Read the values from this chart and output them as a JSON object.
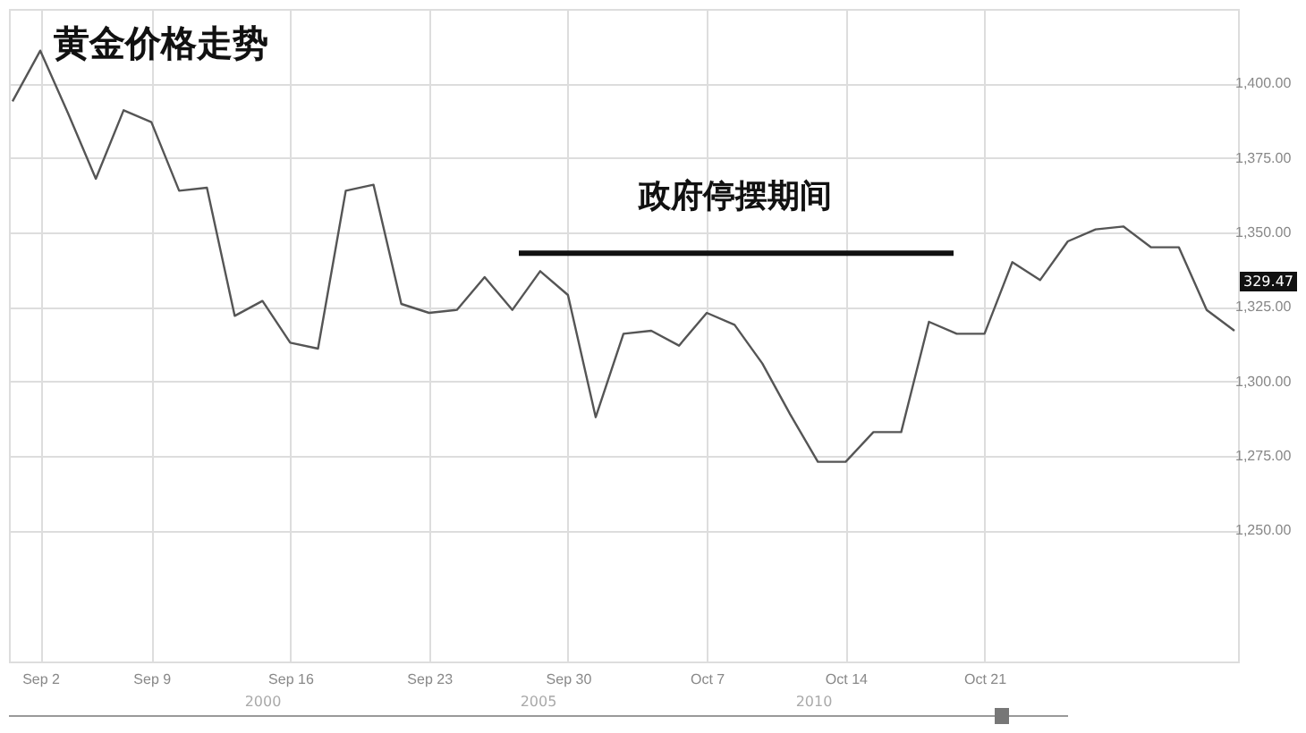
{
  "chart_data": {
    "type": "line",
    "title": "黄金价格走势",
    "categories": [
      null,
      "Sep 2",
      null,
      null,
      null,
      "Sep 9",
      null,
      null,
      null,
      null,
      "Sep 16",
      null,
      null,
      null,
      null,
      "Sep 23",
      null,
      null,
      null,
      null,
      "Sep 30",
      null,
      null,
      null,
      null,
      "Oct 7",
      null,
      null,
      null,
      null,
      "Oct 14",
      null,
      null,
      null,
      null,
      "Oct 21",
      null,
      null,
      null,
      null,
      null,
      null,
      null,
      null,
      null
    ],
    "series": [
      {
        "color": "#555555",
        "values": [
          1394,
          1411,
          1390,
          1368,
          1391,
          1387,
          1364,
          1365,
          1322,
          1327,
          1313,
          1311,
          1364,
          1366,
          1326,
          1323,
          1324,
          1335,
          1324,
          1337,
          1329,
          1288,
          1316,
          1317,
          1312,
          1323,
          1319,
          1306,
          1289,
          1273,
          1273,
          1283,
          1283,
          1320,
          1316,
          1316,
          1340,
          1334,
          1347,
          1351,
          1352,
          1345,
          1345,
          1324,
          1317
        ]
      }
    ],
    "ylim": [
      1206,
      1425
    ],
    "yticks": [
      {
        "value": 1250,
        "label": "1,250.00"
      },
      {
        "value": 1275,
        "label": "1,275.00"
      },
      {
        "value": 1300,
        "label": "1,300.00"
      },
      {
        "value": 1325,
        "label": "1,325.00"
      },
      {
        "value": 1350,
        "label": "1,350.00"
      },
      {
        "value": 1375,
        "label": "1,375.00"
      },
      {
        "value": 1400,
        "label": "1,400.00"
      }
    ],
    "grid": true,
    "marker": "none",
    "line_style": "solid",
    "ref_lines": [
      {
        "axis": "y",
        "value": 1343,
        "label": "政府停摆期间",
        "color": "#111111"
      }
    ],
    "annotations": [
      "329.47",
      "2000",
      "2005",
      "2010"
    ]
  }
}
